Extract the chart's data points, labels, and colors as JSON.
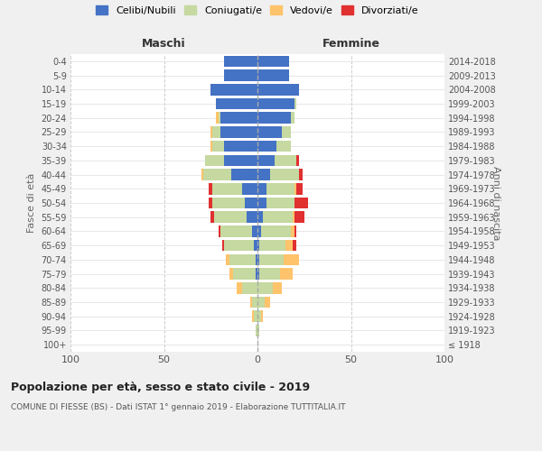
{
  "age_groups": [
    "100+",
    "95-99",
    "90-94",
    "85-89",
    "80-84",
    "75-79",
    "70-74",
    "65-69",
    "60-64",
    "55-59",
    "50-54",
    "45-49",
    "40-44",
    "35-39",
    "30-34",
    "25-29",
    "20-24",
    "15-19",
    "10-14",
    "5-9",
    "0-4"
  ],
  "birth_years": [
    "≤ 1918",
    "1919-1923",
    "1924-1928",
    "1929-1933",
    "1934-1938",
    "1939-1943",
    "1944-1948",
    "1949-1953",
    "1954-1958",
    "1959-1963",
    "1964-1968",
    "1969-1973",
    "1974-1978",
    "1979-1983",
    "1984-1988",
    "1989-1993",
    "1994-1998",
    "1999-2003",
    "2004-2008",
    "2009-2013",
    "2014-2018"
  ],
  "maschi": {
    "celibi": [
      0,
      0,
      0,
      0,
      0,
      1,
      1,
      2,
      3,
      6,
      7,
      8,
      14,
      18,
      18,
      20,
      20,
      22,
      25,
      18,
      18
    ],
    "coniugati": [
      0,
      1,
      2,
      3,
      8,
      12,
      14,
      16,
      17,
      17,
      17,
      16,
      15,
      10,
      6,
      4,
      1,
      0,
      0,
      0,
      0
    ],
    "vedovi": [
      0,
      0,
      1,
      1,
      3,
      2,
      2,
      0,
      0,
      0,
      0,
      0,
      1,
      0,
      1,
      1,
      1,
      0,
      0,
      0,
      0
    ],
    "divorziati": [
      0,
      0,
      0,
      0,
      0,
      0,
      0,
      1,
      1,
      2,
      2,
      2,
      0,
      0,
      0,
      0,
      0,
      0,
      0,
      0,
      0
    ]
  },
  "femmine": {
    "nubili": [
      0,
      0,
      0,
      0,
      0,
      1,
      1,
      1,
      2,
      3,
      5,
      5,
      7,
      9,
      10,
      13,
      18,
      20,
      22,
      17,
      17
    ],
    "coniugate": [
      0,
      1,
      2,
      4,
      8,
      11,
      13,
      14,
      16,
      16,
      15,
      15,
      15,
      12,
      8,
      5,
      2,
      1,
      0,
      0,
      0
    ],
    "vedove": [
      0,
      0,
      1,
      3,
      5,
      7,
      8,
      4,
      2,
      1,
      0,
      1,
      0,
      0,
      0,
      0,
      0,
      0,
      0,
      0,
      0
    ],
    "divorziate": [
      0,
      0,
      0,
      0,
      0,
      0,
      0,
      2,
      1,
      5,
      7,
      3,
      2,
      1,
      0,
      0,
      0,
      0,
      0,
      0,
      0
    ]
  },
  "colors": {
    "celibi_nubili": "#4472c4",
    "coniugati": "#c5d9a0",
    "vedovi": "#ffc36b",
    "divorziati": "#e03030"
  },
  "xlim": 100,
  "title": "Popolazione per età, sesso e stato civile - 2019",
  "subtitle": "COMUNE DI FIESSE (BS) - Dati ISTAT 1° gennaio 2019 - Elaborazione TUTTITALIA.IT",
  "xlabel_left": "Maschi",
  "xlabel_right": "Femmine",
  "ylabel_left": "Fasce di età",
  "ylabel_right": "Anni di nascita",
  "legend_labels": [
    "Celibi/Nubili",
    "Coniugati/e",
    "Vedovi/e",
    "Divorziati/e"
  ],
  "bg_color": "#f0f0f0",
  "plot_bg": "#ffffff"
}
